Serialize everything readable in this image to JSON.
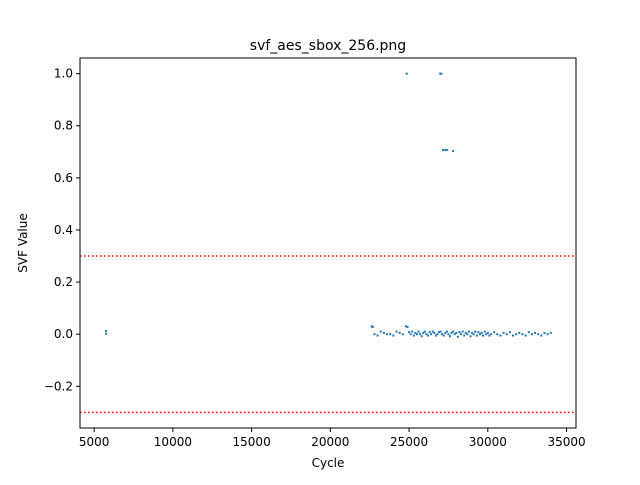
{
  "chart_data": {
    "type": "scatter",
    "title": "svf_aes_sbox_256.png",
    "xlabel": "Cycle",
    "ylabel": "SVF Value",
    "xlim": [
      4100,
      35600
    ],
    "ylim": [
      -0.36,
      1.06
    ],
    "xticks": [
      5000,
      10000,
      15000,
      20000,
      25000,
      30000,
      35000
    ],
    "xtick_labels": [
      "5000",
      "10000",
      "15000",
      "20000",
      "25000",
      "30000",
      "35000"
    ],
    "yticks": [
      -0.2,
      0.0,
      0.2,
      0.4,
      0.6,
      0.8,
      1.0
    ],
    "ytick_labels": [
      "−0.2",
      "0.0",
      "0.2",
      "0.4",
      "0.6",
      "0.8",
      "1.0"
    ],
    "grid": false,
    "point_color": "#1f77b4",
    "threshold_lines": [
      {
        "y": 0.3,
        "color": "#ff0000",
        "style": "dotted"
      },
      {
        "y": -0.3,
        "color": "#ff0000",
        "style": "dotted"
      }
    ],
    "series": [
      {
        "x": [
          5750,
          5760,
          24850,
          26980,
          27050,
          27150,
          27300,
          27420,
          27800,
          22620,
          22700,
          22800,
          23000,
          23200,
          23400,
          23600,
          23800,
          24000,
          24200,
          24400,
          24600,
          24800,
          24900,
          25000,
          25100,
          25200,
          25300,
          25400,
          25500,
          25600,
          25700,
          25800,
          25900,
          26000,
          26100,
          26200,
          26300,
          26400,
          26500,
          26600,
          26700,
          26800,
          26900,
          27000,
          27100,
          27200,
          27300,
          27400,
          27500,
          27600,
          27700,
          27800,
          27900,
          28000,
          28100,
          28200,
          28300,
          28400,
          28500,
          28600,
          28700,
          28800,
          28900,
          29000,
          29100,
          29200,
          29300,
          29400,
          29500,
          29600,
          29700,
          29800,
          29900,
          30000,
          30100,
          30200,
          30400,
          30600,
          30800,
          31000,
          31200,
          31400,
          31600,
          31800,
          32000,
          32200,
          32400,
          32600,
          32800,
          33000,
          33200,
          33400,
          33600,
          33800,
          34000
        ],
        "y": [
          0.012,
          0.002,
          1.0,
          1.0,
          1.0,
          0.707,
          0.707,
          0.707,
          0.703,
          0.03,
          0.028,
          0.0,
          -0.005,
          0.01,
          0.005,
          0.0,
          0.0,
          -0.005,
          0.01,
          0.005,
          0.0,
          0.03,
          0.028,
          0.008,
          0.0,
          0.01,
          -0.005,
          0.005,
          0.0,
          0.01,
          0.0,
          -0.008,
          0.005,
          0.01,
          0.0,
          -0.005,
          0.008,
          0.0,
          0.01,
          0.005,
          -0.005,
          0.0,
          0.008,
          0.01,
          0.0,
          -0.005,
          0.005,
          0.01,
          0.0,
          -0.008,
          0.005,
          0.01,
          0.0,
          0.005,
          -0.01,
          0.008,
          0.0,
          0.01,
          -0.005,
          0.005,
          0.0,
          0.01,
          -0.008,
          0.005,
          0.0,
          0.01,
          -0.005,
          0.008,
          0.0,
          0.005,
          -0.005,
          0.01,
          0.0,
          0.005,
          -0.005,
          0.0,
          0.008,
          0.0,
          -0.005,
          0.005,
          0.0,
          0.008,
          -0.005,
          0.0,
          0.005,
          0.0,
          -0.005,
          0.008,
          0.0,
          0.005,
          0.0,
          -0.005,
          0.005,
          0.0,
          0.005
        ]
      }
    ]
  }
}
